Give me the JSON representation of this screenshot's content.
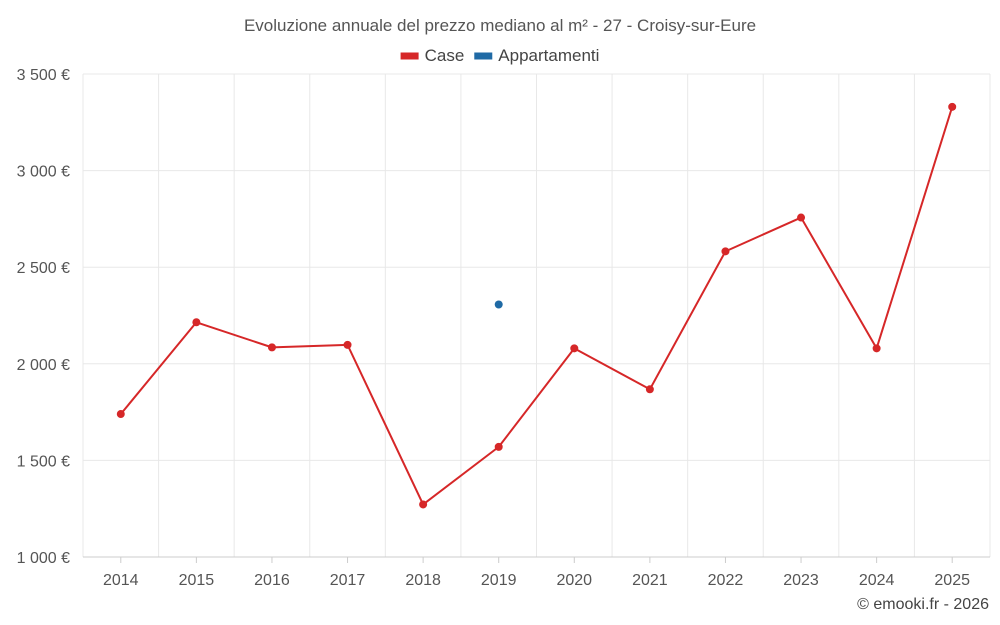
{
  "chart_data": {
    "type": "line",
    "title": "Evoluzione annuale del prezzo mediano al m² - 27 - Croisy-sur-Eure",
    "categories": [
      "2014",
      "2015",
      "2016",
      "2017",
      "2018",
      "2019",
      "2020",
      "2021",
      "2022",
      "2023",
      "2024",
      "2025"
    ],
    "series": [
      {
        "name": "Case",
        "color": "#d62728",
        "values": [
          1740,
          2215,
          2085,
          2098,
          1272,
          1570,
          2080,
          1868,
          2582,
          2757,
          2080,
          3330
        ]
      },
      {
        "name": "Appartamenti",
        "color": "#1f6aa5",
        "values": [
          null,
          null,
          null,
          null,
          null,
          2307,
          null,
          null,
          null,
          null,
          null,
          null
        ]
      }
    ],
    "ylim": [
      1000,
      3500
    ],
    "yticks": [
      1000,
      1500,
      2000,
      2500,
      3000,
      3500
    ],
    "ytick_labels": [
      "1 000 €",
      "1 500 €",
      "2 000 €",
      "2 500 €",
      "3 000 €",
      "3 500 €"
    ],
    "xlabel": "",
    "ylabel": "",
    "grid": true,
    "legend_position": "top-center"
  },
  "credit": "© emooki.fr - 2026"
}
